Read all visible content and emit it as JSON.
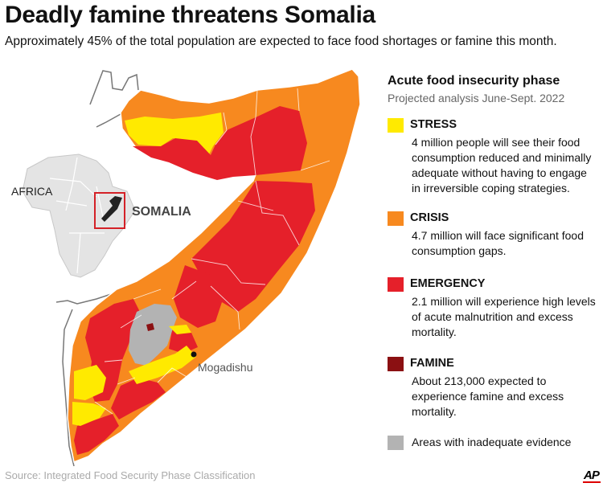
{
  "header": {
    "title": "Deadly famine threatens Somalia",
    "subtitle": "Approximately 45% of the total population are expected to face food shortages or famine this month."
  },
  "map": {
    "inset_label": "AFRICA",
    "country_label": "SOMALIA",
    "city_label": "Mogadishu"
  },
  "legend": {
    "title": "Acute food insecurity phase",
    "subtitle": "Projected analysis June-Sept. 2022",
    "items": [
      {
        "label": "STRESS",
        "color": "#ffea00",
        "description": "4 million people will see their food consumption reduced and minimally adequate without having to engage in irreversible coping strategies."
      },
      {
        "label": "CRISIS",
        "color": "#f7891f",
        "description": "4.7 million will face significant food consumption gaps."
      },
      {
        "label": "EMERGENCY",
        "color": "#e5202a",
        "description": "2.1 million will experience high levels of acute malnutrition and excess mortality."
      },
      {
        "label": "FAMINE",
        "color": "#8b1012",
        "description": "About 213,000 expected to experience famine and excess mortality."
      }
    ],
    "inadequate": {
      "label": "Areas with inadequate evidence",
      "color": "#b3b3b3"
    }
  },
  "footer": {
    "source": "Source: Integrated Food Security Phase Classification",
    "logo": "AP"
  }
}
